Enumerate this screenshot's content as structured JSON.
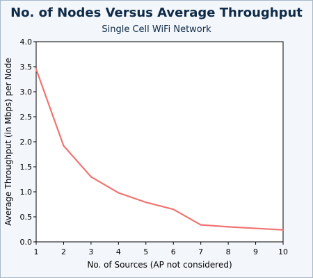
{
  "chart_data": {
    "type": "line",
    "title": "No. of Nodes Versus Average Throughput",
    "subtitle": "Single Cell WiFi Network",
    "xlabel": "No. of Sources (AP not considered)",
    "ylabel": "Average Throughput (in Mbps) per Node",
    "x": [
      1,
      2,
      3,
      4,
      5,
      6,
      7,
      8,
      9,
      10
    ],
    "x_ticks": [
      "1",
      "2",
      "3",
      "4",
      "5",
      "6",
      "7",
      "8",
      "9",
      "10"
    ],
    "y_ticks": [
      "0.0",
      "0.5",
      "1.0",
      "1.5",
      "2.0",
      "2.5",
      "3.0",
      "3.5",
      "4.0"
    ],
    "xlim": [
      1,
      10
    ],
    "ylim": [
      0,
      4
    ],
    "grid": false,
    "series": [
      {
        "values": [
          3.45,
          1.92,
          1.3,
          0.98,
          0.79,
          0.65,
          0.34,
          0.3,
          0.27,
          0.24
        ],
        "color": "#f07470"
      }
    ],
    "colors": {
      "background": "#f3f6fa",
      "plot_background": "#ffffff",
      "title_color": "#0e2a47"
    }
  }
}
